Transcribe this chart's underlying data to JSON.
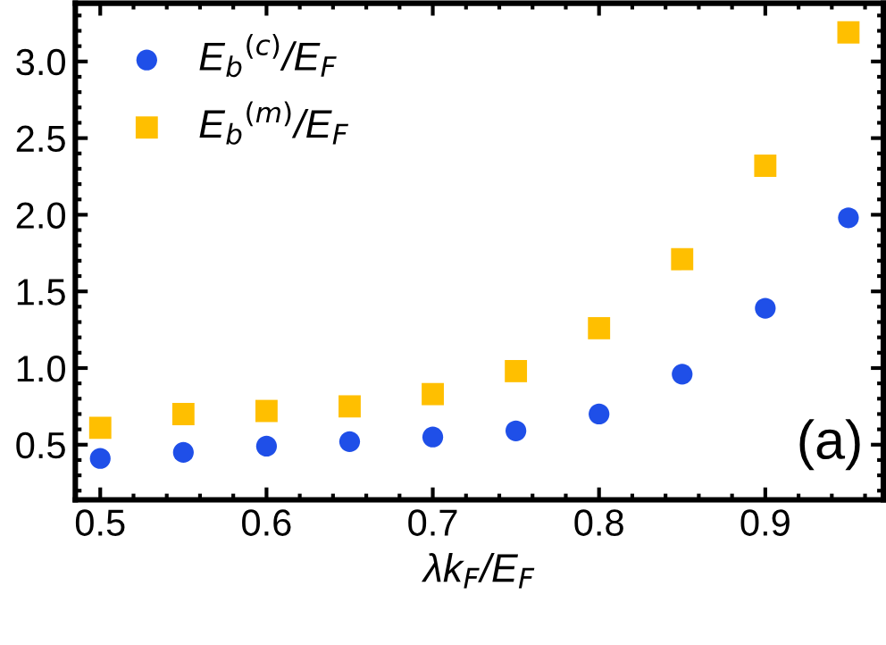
{
  "chart_data": {
    "type": "scatter",
    "xlabel": "λk$_{F}$/E$_{F}$",
    "x": [
      0.5,
      0.55,
      0.6,
      0.65,
      0.7,
      0.75,
      0.8,
      0.85,
      0.9,
      0.95
    ],
    "series": [
      {
        "name": "E$_{b}$$^{(c)}$/E$_{F}$",
        "color": "#1f4fe8",
        "marker": "circle",
        "values": [
          0.41,
          0.45,
          0.49,
          0.52,
          0.55,
          0.59,
          0.7,
          0.96,
          1.39,
          1.98
        ]
      },
      {
        "name": "E$_{b}$$^{(m)}$/E$_{F}$",
        "color": "#ffbf00",
        "marker": "square",
        "values": [
          0.61,
          0.7,
          0.72,
          0.75,
          0.83,
          0.98,
          1.26,
          1.71,
          2.32,
          3.19
        ]
      }
    ],
    "annotations": [
      "(a)"
    ],
    "xlim": [
      0.485,
      0.971
    ],
    "ylim": [
      0.14,
      3.38
    ],
    "xticks": [
      0.5,
      0.6,
      0.7,
      0.8,
      0.9
    ],
    "yticks": [
      0.5,
      {
        "value": 1,
        "label": "1.0"
      },
      1.5,
      {
        "value": 2,
        "label": "2.0"
      },
      2.5,
      {
        "value": 3,
        "label": "3.0"
      }
    ],
    "grid": false,
    "legend": "top left"
  }
}
